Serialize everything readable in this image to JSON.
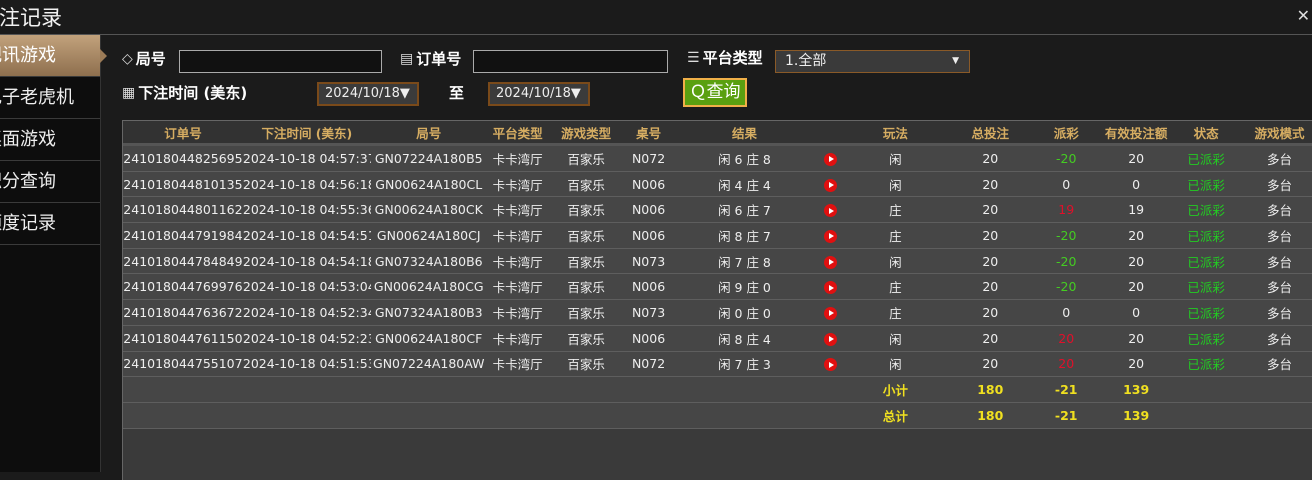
{
  "title": "投注记录",
  "sidebar": {
    "items": [
      {
        "label": "视讯游戏",
        "active": true
      },
      {
        "label": "电子老虎机"
      },
      {
        "label": "桌面游戏"
      },
      {
        "label": "积分查询"
      },
      {
        "label": "额度记录"
      }
    ]
  },
  "filters": {
    "round_label": "局号",
    "round_value": "",
    "order_label": "订单号",
    "order_value": "",
    "platform_label": "平台类型",
    "platform_value": "1.全部",
    "time_label": "下注时间 (美东)",
    "date_from": "2024/10/18▼",
    "to_label": "至",
    "date_to": "2024/10/18▼",
    "query_label": "查询"
  },
  "icons": {
    "round": "tag-icon",
    "order": "clipboard-icon",
    "platform": "list-icon",
    "time": "calendar-icon",
    "query": "search-icon",
    "result": "play-icon",
    "close": "close-icon"
  },
  "colors": {
    "header_text": "#d6ad62",
    "positive": "#e0102a",
    "negative": "#44cc22",
    "status": "#22cc22",
    "summary": "#f0e020",
    "query_button": "#5aa010"
  },
  "table": {
    "headers": [
      "订单号",
      "下注时间 (美东)",
      "局号",
      "平台类型",
      "游戏类型",
      "桌号",
      "结果",
      "",
      "玩法",
      "总投注",
      "派彩",
      "有效投注额",
      "状态",
      "游戏模式"
    ],
    "rows": [
      [
        "241018044825695",
        "2024-10-18 04:57:37",
        "GN07224A180B5",
        "卡卡湾厅",
        "百家乐",
        "N072",
        "闲 6 庄 8",
        "闲",
        "20",
        "-20",
        "20",
        "已派彩",
        "多台"
      ],
      [
        "241018044810135",
        "2024-10-18 04:56:18",
        "GN00624A180CL",
        "卡卡湾厅",
        "百家乐",
        "N006",
        "闲 4 庄 4",
        "闲",
        "20",
        "0",
        "0",
        "已派彩",
        "多台"
      ],
      [
        "241018044801162",
        "2024-10-18 04:55:36",
        "GN00624A180CK",
        "卡卡湾厅",
        "百家乐",
        "N006",
        "闲 6 庄 7",
        "庄",
        "20",
        "19",
        "19",
        "已派彩",
        "多台"
      ],
      [
        "241018044791984",
        "2024-10-18 04:54:51",
        "GN00624A180CJ",
        "卡卡湾厅",
        "百家乐",
        "N006",
        "闲 8 庄 7",
        "庄",
        "20",
        "-20",
        "20",
        "已派彩",
        "多台"
      ],
      [
        "241018044784849",
        "2024-10-18 04:54:18",
        "GN07324A180B6",
        "卡卡湾厅",
        "百家乐",
        "N073",
        "闲 7 庄 8",
        "闲",
        "20",
        "-20",
        "20",
        "已派彩",
        "多台"
      ],
      [
        "241018044769976",
        "2024-10-18 04:53:04",
        "GN00624A180CG",
        "卡卡湾厅",
        "百家乐",
        "N006",
        "闲 9 庄 0",
        "庄",
        "20",
        "-20",
        "20",
        "已派彩",
        "多台"
      ],
      [
        "241018044763672",
        "2024-10-18 04:52:34",
        "GN07324A180B3",
        "卡卡湾厅",
        "百家乐",
        "N073",
        "闲 0 庄 0",
        "庄",
        "20",
        "0",
        "0",
        "已派彩",
        "多台"
      ],
      [
        "241018044761150",
        "2024-10-18 04:52:23",
        "GN00624A180CF",
        "卡卡湾厅",
        "百家乐",
        "N006",
        "闲 8 庄 4",
        "闲",
        "20",
        "20",
        "20",
        "已派彩",
        "多台"
      ],
      [
        "241018044755107",
        "2024-10-18 04:51:53",
        "GN07224A180AW",
        "卡卡湾厅",
        "百家乐",
        "N072",
        "闲 7 庄 3",
        "闲",
        "20",
        "20",
        "20",
        "已派彩",
        "多台"
      ]
    ],
    "subtotal": {
      "label": "小计",
      "total_bet": "180",
      "payout": "-21",
      "valid_bet": "139"
    },
    "total": {
      "label": "总计",
      "total_bet": "180",
      "payout": "-21",
      "valid_bet": "139"
    }
  }
}
